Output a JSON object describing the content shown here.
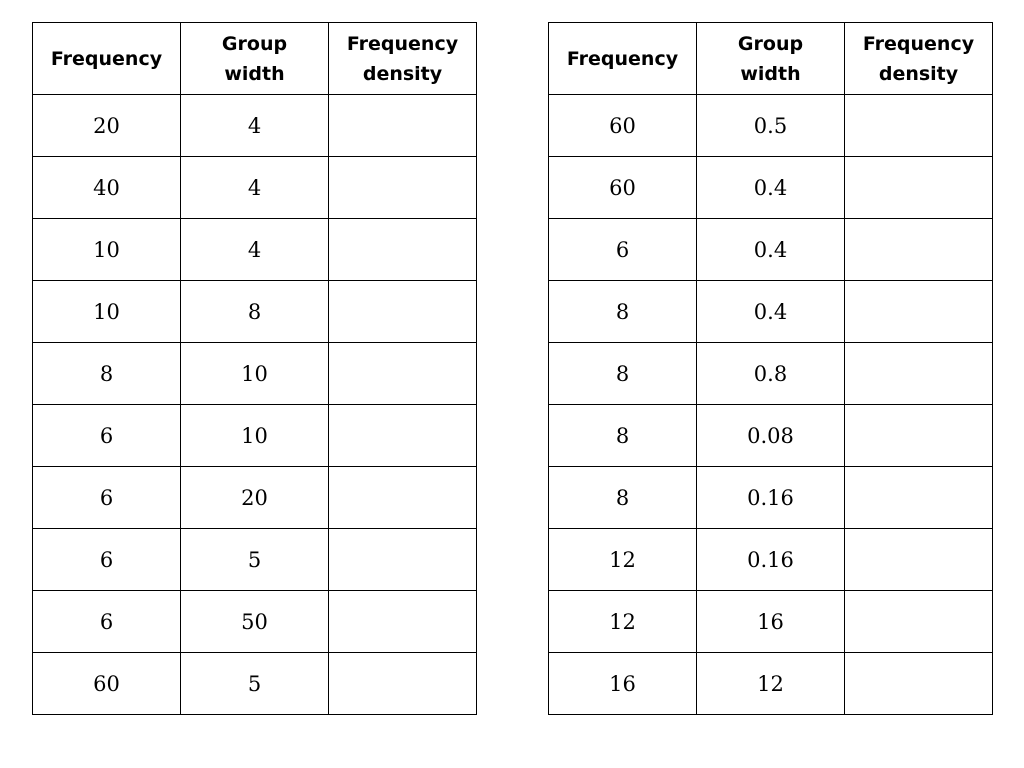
{
  "headers": {
    "frequency": "Frequency",
    "group_width_line1": "Group",
    "group_width_line2": "width",
    "density_line1": "Frequency",
    "density_line2": "density"
  },
  "left_table": {
    "rows": [
      {
        "frequency": "20",
        "group_width": "4",
        "density": ""
      },
      {
        "frequency": "40",
        "group_width": "4",
        "density": ""
      },
      {
        "frequency": "10",
        "group_width": "4",
        "density": ""
      },
      {
        "frequency": "10",
        "group_width": "8",
        "density": ""
      },
      {
        "frequency": "8",
        "group_width": "10",
        "density": ""
      },
      {
        "frequency": "6",
        "group_width": "10",
        "density": ""
      },
      {
        "frequency": "6",
        "group_width": "20",
        "density": ""
      },
      {
        "frequency": "6",
        "group_width": "5",
        "density": ""
      },
      {
        "frequency": "6",
        "group_width": "50",
        "density": ""
      },
      {
        "frequency": "60",
        "group_width": "5",
        "density": ""
      }
    ]
  },
  "right_table": {
    "rows": [
      {
        "frequency": "60",
        "group_width": "0.5",
        "density": ""
      },
      {
        "frequency": "60",
        "group_width": "0.4",
        "density": ""
      },
      {
        "frequency": "6",
        "group_width": "0.4",
        "density": ""
      },
      {
        "frequency": "8",
        "group_width": "0.4",
        "density": ""
      },
      {
        "frequency": "8",
        "group_width": "0.8",
        "density": ""
      },
      {
        "frequency": "8",
        "group_width": "0.08",
        "density": ""
      },
      {
        "frequency": "8",
        "group_width": "0.16",
        "density": ""
      },
      {
        "frequency": "12",
        "group_width": "0.16",
        "density": ""
      },
      {
        "frequency": "12",
        "group_width": "16",
        "density": ""
      },
      {
        "frequency": "16",
        "group_width": "12",
        "density": ""
      }
    ]
  }
}
